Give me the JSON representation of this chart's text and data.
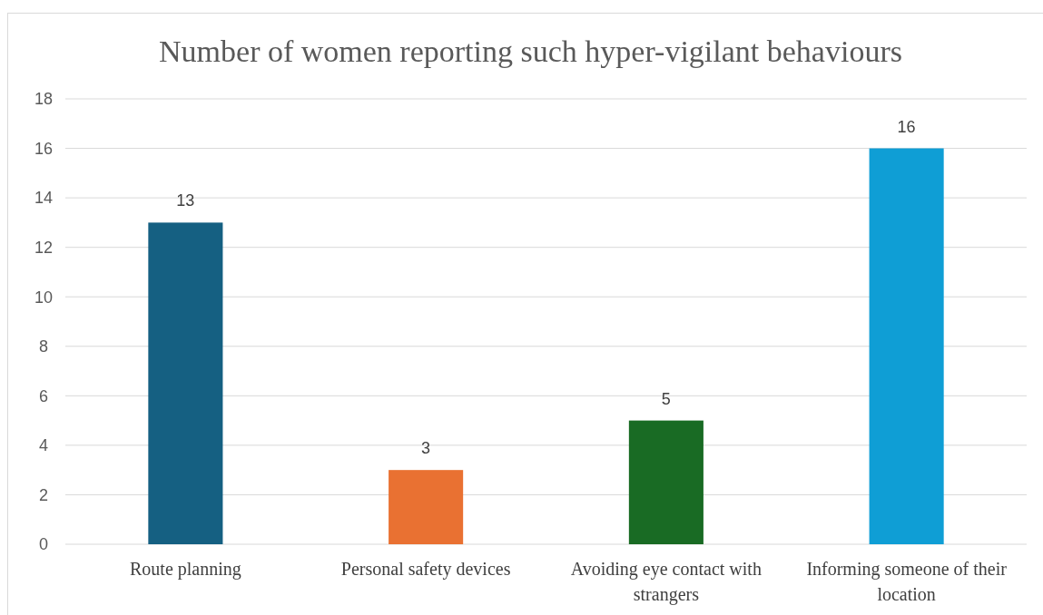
{
  "chart_data": {
    "type": "bar",
    "title": "Number of women reporting such hyper-vigilant behaviours",
    "categories": [
      "Route planning",
      "Personal safety devices",
      "Avoiding eye contact with strangers",
      "Informing someone of their location"
    ],
    "values": [
      13,
      3,
      5,
      16
    ],
    "colors": [
      "#156082",
      "#e97132",
      "#196b24",
      "#0f9ed5"
    ],
    "ylim": [
      0,
      18
    ],
    "yticks": [
      0,
      2,
      4,
      6,
      8,
      10,
      12,
      14,
      16,
      18
    ],
    "grid": "y",
    "data_labels": true
  }
}
